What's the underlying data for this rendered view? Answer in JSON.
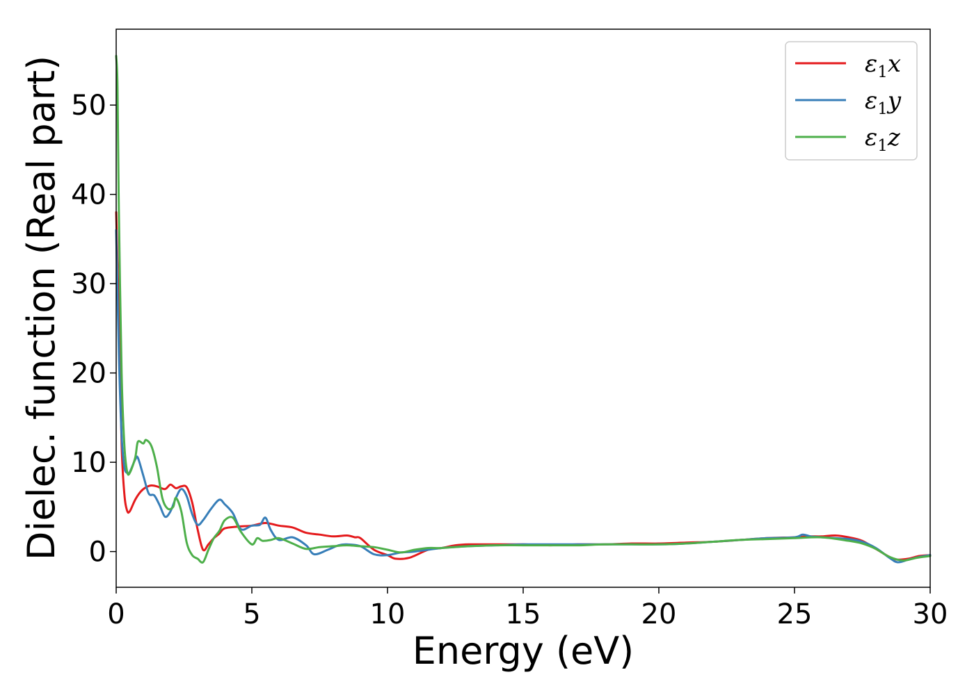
{
  "chart_data": {
    "type": "line",
    "xlabel": "Energy (eV)",
    "ylabel": "Dielec. function (Real part)",
    "xlim": [
      0,
      30
    ],
    "ylim": [
      -4,
      58.5
    ],
    "xticks": [
      0,
      5,
      10,
      15,
      20,
      25,
      30
    ],
    "yticks": [
      0,
      10,
      20,
      30,
      40,
      50
    ],
    "grid": false,
    "legend_position": "top-right",
    "series": [
      {
        "name": "ε₁x",
        "label_base": "ε",
        "label_sub": "1",
        "label_var": "x",
        "color": "#e41a1c",
        "x": [
          0,
          0.1,
          0.2,
          0.3,
          0.4,
          0.5,
          0.7,
          0.9,
          1.1,
          1.3,
          1.5,
          1.8,
          2.0,
          2.2,
          2.4,
          2.6,
          2.8,
          3.0,
          3.2,
          3.4,
          3.6,
          3.8,
          4.0,
          4.5,
          5.0,
          5.5,
          6.0,
          6.5,
          7.0,
          7.5,
          8.0,
          8.5,
          8.8,
          9.0,
          9.5,
          10.0,
          10.3,
          10.8,
          11.5,
          12.0,
          12.5,
          13.0,
          14.0,
          15.0,
          16.0,
          17.0,
          18.0,
          19.0,
          20.0,
          21.0,
          22.0,
          23.0,
          24.0,
          25.0,
          25.5,
          26.0,
          26.5,
          27.0,
          27.5,
          28.0,
          28.5,
          28.8,
          29.2,
          29.6,
          30.0
        ],
        "y": [
          38,
          26,
          12,
          6.5,
          4.6,
          4.5,
          5.8,
          6.7,
          7.2,
          7.4,
          7.3,
          7.0,
          7.5,
          7.1,
          7.3,
          7.2,
          5.5,
          2.5,
          0.2,
          0.8,
          1.5,
          2.0,
          2.6,
          2.8,
          2.9,
          3.2,
          2.9,
          2.7,
          2.1,
          1.9,
          1.7,
          1.8,
          1.6,
          1.5,
          0.2,
          -0.4,
          -0.8,
          -0.7,
          0.2,
          0.4,
          0.7,
          0.8,
          0.8,
          0.8,
          0.7,
          0.8,
          0.8,
          0.9,
          0.9,
          1.0,
          1.1,
          1.3,
          1.5,
          1.6,
          1.7,
          1.7,
          1.8,
          1.6,
          1.2,
          0.3,
          -0.6,
          -0.9,
          -0.8,
          -0.5,
          -0.4
        ]
      },
      {
        "name": "ε₁y",
        "label_base": "ε",
        "label_sub": "1",
        "label_var": "y",
        "color": "#377eb8",
        "x": [
          0,
          0.1,
          0.2,
          0.3,
          0.4,
          0.5,
          0.7,
          0.8,
          1.0,
          1.2,
          1.4,
          1.6,
          1.8,
          2.0,
          2.2,
          2.4,
          2.6,
          2.8,
          3.0,
          3.2,
          3.5,
          3.8,
          4.0,
          4.3,
          4.6,
          5.0,
          5.3,
          5.5,
          5.7,
          6.0,
          6.5,
          7.0,
          7.3,
          7.8,
          8.2,
          8.5,
          9.0,
          9.5,
          10.0,
          10.5,
          11.0,
          12.0,
          13.0,
          14.0,
          15.0,
          16.0,
          17.0,
          18.0,
          19.0,
          20.0,
          21.0,
          22.0,
          23.0,
          24.0,
          25.0,
          25.3,
          25.6,
          26.0,
          26.5,
          27.0,
          27.5,
          28.0,
          28.5,
          28.8,
          29.2,
          29.6,
          30.0
        ],
        "y": [
          36,
          22,
          13,
          9.5,
          8.8,
          8.9,
          10.3,
          10.5,
          8.5,
          6.5,
          6.3,
          5.2,
          3.9,
          4.5,
          6.0,
          7.0,
          6.2,
          4.2,
          3.0,
          3.5,
          4.8,
          5.8,
          5.3,
          4.3,
          2.5,
          2.9,
          3.0,
          3.8,
          2.4,
          1.3,
          1.6,
          0.7,
          -0.3,
          0.2,
          0.7,
          0.8,
          0.6,
          -0.3,
          -0.4,
          -0.1,
          0.0,
          0.4,
          0.6,
          0.7,
          0.8,
          0.8,
          0.8,
          0.8,
          0.8,
          0.8,
          0.9,
          1.1,
          1.3,
          1.5,
          1.6,
          1.9,
          1.7,
          1.6,
          1.5,
          1.4,
          1.1,
          0.4,
          -0.7,
          -1.2,
          -0.9,
          -0.6,
          -0.4
        ]
      },
      {
        "name": "ε₁z",
        "label_base": "ε",
        "label_sub": "1",
        "label_var": "z",
        "color": "#4daf4a",
        "x": [
          0,
          0.05,
          0.1,
          0.2,
          0.3,
          0.4,
          0.5,
          0.7,
          0.8,
          1.0,
          1.1,
          1.3,
          1.5,
          1.7,
          1.9,
          2.1,
          2.2,
          2.4,
          2.6,
          2.8,
          3.0,
          3.2,
          3.4,
          3.6,
          3.8,
          4.0,
          4.3,
          4.6,
          5.0,
          5.2,
          5.4,
          5.7,
          6.0,
          6.5,
          7.0,
          7.5,
          8.0,
          8.5,
          9.0,
          9.5,
          10.0,
          10.5,
          11.0,
          11.5,
          12.0,
          13.0,
          14.0,
          15.0,
          16.0,
          17.0,
          18.0,
          19.0,
          20.0,
          21.0,
          22.0,
          23.0,
          24.0,
          25.0,
          26.0,
          27.0,
          27.5,
          28.0,
          28.5,
          29.0,
          29.5,
          30.0
        ],
        "y": [
          55.5,
          52,
          38,
          20,
          12,
          9.0,
          8.8,
          10.5,
          12.3,
          12.1,
          12.5,
          11.8,
          9.5,
          6.0,
          4.8,
          5.0,
          6.0,
          4.5,
          1.0,
          -0.4,
          -0.8,
          -1.2,
          0.2,
          1.5,
          2.3,
          3.5,
          3.8,
          2.2,
          0.8,
          1.5,
          1.2,
          1.3,
          1.5,
          0.9,
          0.3,
          0.5,
          0.6,
          0.7,
          0.6,
          0.5,
          0.2,
          -0.1,
          0.2,
          0.4,
          0.4,
          0.6,
          0.7,
          0.7,
          0.7,
          0.7,
          0.8,
          0.8,
          0.8,
          0.9,
          1.1,
          1.3,
          1.4,
          1.5,
          1.6,
          1.2,
          0.9,
          0.3,
          -0.6,
          -1.0,
          -0.7,
          -0.5
        ]
      }
    ]
  }
}
